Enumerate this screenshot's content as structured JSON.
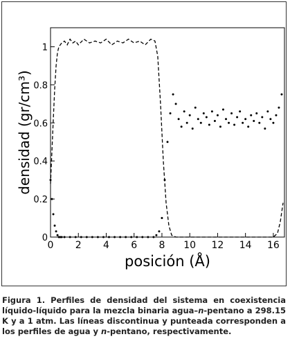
{
  "chart_data": {
    "type": "line",
    "xlabel": "posición (Å)",
    "ylabel": "densidad (gr/cm³)",
    "xlim": [
      0,
      16.8
    ],
    "ylim": [
      0,
      1.1
    ],
    "xticks": [
      0,
      2,
      4,
      6,
      8,
      10,
      12,
      14,
      16
    ],
    "yticks": [
      0,
      0.2,
      0.4,
      0.6,
      0.8,
      1
    ],
    "series": [
      {
        "style": "dashed",
        "color": "#000000",
        "x": [
          0,
          0.1,
          0.2,
          0.3,
          0.4,
          0.5,
          0.6,
          0.7,
          0.8,
          1.0,
          1.2,
          1.4,
          1.6,
          1.8,
          2.0,
          2.4,
          2.8,
          3.2,
          3.6,
          4.0,
          4.4,
          4.8,
          5.2,
          5.6,
          6.0,
          6.4,
          6.8,
          7.2,
          7.5,
          7.7,
          7.9,
          8.1,
          8.3,
          8.5,
          8.7,
          9.0,
          10,
          12,
          14,
          16,
          16.3,
          16.5,
          16.7
        ],
        "values": [
          0.28,
          0.45,
          0.62,
          0.78,
          0.9,
          0.97,
          1.0,
          1.01,
          1.02,
          1.03,
          1.01,
          1.04,
          1.02,
          1.03,
          1.01,
          1.04,
          1.02,
          1.03,
          1.02,
          1.04,
          1.01,
          1.03,
          1.02,
          1.04,
          1.02,
          1.03,
          1.01,
          1.04,
          1.03,
          0.95,
          0.7,
          0.4,
          0.18,
          0.06,
          0.01,
          0,
          0,
          0,
          0,
          0,
          0.02,
          0.08,
          0.18
        ]
      },
      {
        "style": "dots",
        "color": "#000000",
        "x": [
          0,
          0.1,
          0.2,
          0.3,
          0.4,
          0.5,
          0.6,
          0.7,
          0.8,
          1.0,
          1.4,
          1.8,
          2.2,
          2.6,
          3.0,
          3.4,
          3.8,
          4.2,
          4.6,
          5.0,
          5.4,
          5.8,
          6.2,
          6.6,
          7.0,
          7.4,
          7.6,
          7.8,
          8.0,
          8.2,
          8.4,
          8.6,
          8.8,
          9.0,
          9.2,
          9.4,
          9.6,
          9.8,
          10.0,
          10.2,
          10.4,
          10.6,
          10.8,
          11.0,
          11.2,
          11.4,
          11.6,
          11.8,
          12.0,
          12.2,
          12.4,
          12.6,
          12.8,
          13.0,
          13.2,
          13.4,
          13.6,
          13.8,
          14.0,
          14.2,
          14.4,
          14.6,
          14.8,
          15.0,
          15.2,
          15.4,
          15.6,
          15.8,
          16.0,
          16.2,
          16.4,
          16.6
        ],
        "values": [
          0.3,
          0.2,
          0.12,
          0.06,
          0.03,
          0.01,
          0,
          0,
          0,
          0,
          0,
          0,
          0,
          0,
          0,
          0,
          0,
          0,
          0,
          0,
          0,
          0,
          0,
          0,
          0,
          0,
          0.01,
          0.03,
          0.1,
          0.3,
          0.5,
          0.65,
          0.75,
          0.7,
          0.62,
          0.58,
          0.66,
          0.6,
          0.64,
          0.57,
          0.68,
          0.62,
          0.6,
          0.65,
          0.63,
          0.59,
          0.66,
          0.61,
          0.64,
          0.58,
          0.67,
          0.62,
          0.6,
          0.65,
          0.59,
          0.63,
          0.66,
          0.6,
          0.62,
          0.58,
          0.64,
          0.61,
          0.65,
          0.6,
          0.63,
          0.57,
          0.66,
          0.62,
          0.6,
          0.64,
          0.68,
          0.75
        ]
      }
    ]
  },
  "caption_parts": [
    "Figura 1. Perfiles de densidad del sistema en coexistencia líquido-líquido para la mezcla binaria agua–",
    "n",
    "-pentano a 298.15 K y a 1 atm. Las líneas discontinua y punteada corresponden a los perfiles de agua y ",
    "n",
    "-pentano, respectivamente."
  ]
}
